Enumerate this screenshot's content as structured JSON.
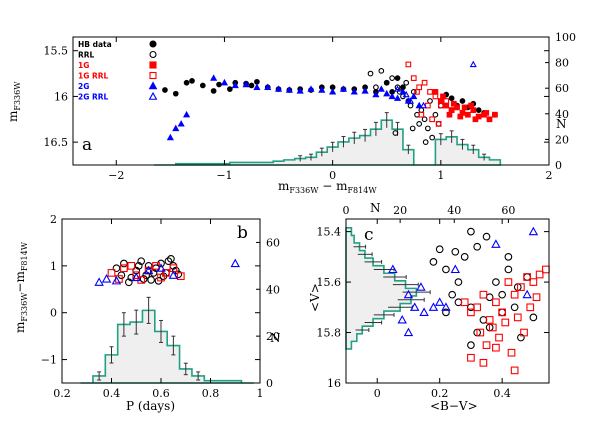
{
  "colors": {
    "hb": "#000000",
    "g1": "#ff0000",
    "g2": "#0000ff",
    "hist": "#22a085",
    "histfill": "#efefef"
  },
  "chart_data": [
    {
      "id": "a",
      "type": "scatter",
      "panel_label": "a",
      "xlabel": {
        "main": "m",
        "sub1": "F336W",
        "mid": " − m",
        "sub2": "F814W"
      },
      "ylabel": {
        "main": "m",
        "sub": "F336W"
      },
      "y2label": "N",
      "xlim": [
        -2.4,
        2
      ],
      "ylim": [
        16.75,
        15.35
      ],
      "y2lim": [
        0,
        100
      ],
      "xticks": [
        -2,
        -1,
        0,
        1,
        2
      ],
      "xtick_labels": [
        "−2",
        "−1",
        "0",
        "1",
        "2"
      ],
      "yticks": [
        15.5,
        16,
        16.5
      ],
      "ytick_labels": [
        "15.5",
        "16",
        "16.5"
      ],
      "y2ticks": [
        0,
        20,
        40,
        60,
        80,
        100
      ],
      "y2tick_labels": [
        "0",
        "20",
        "40",
        "60",
        "80",
        "100"
      ],
      "legend": [
        {
          "label": "HB data",
          "color": "#000000",
          "marker": "circle-filled"
        },
        {
          "label": "RRL",
          "color": "#000000",
          "marker": "circle-open"
        },
        {
          "label": "1G",
          "color": "#ff0000",
          "marker": "square-filled"
        },
        {
          "label": "1G RRL",
          "color": "#ff0000",
          "marker": "square-open"
        },
        {
          "label": "2G",
          "color": "#0000ff",
          "marker": "triangle-filled"
        },
        {
          "label": "2G RRL",
          "color": "#0000ff",
          "marker": "triangle-open"
        }
      ],
      "series": [
        {
          "name": "HB data",
          "marker": "circle-filled",
          "color": "#000000",
          "x": [
            -1.55,
            -1.45,
            -1.35,
            -1.3,
            -1.2,
            -1.1,
            -1.05,
            -0.95,
            -0.9,
            -0.8,
            -0.75,
            -0.7,
            -0.6,
            -0.5,
            -0.4,
            -0.3,
            -0.2,
            -0.1,
            0.0,
            0.1,
            0.2,
            0.3,
            0.4,
            0.5,
            0.55,
            0.6,
            0.65,
            1.0,
            1.05,
            1.1,
            1.15,
            1.2,
            1.25,
            1.3,
            1.35,
            1.4,
            1.5
          ],
          "y": [
            15.93,
            15.97,
            15.85,
            15.83,
            15.88,
            15.94,
            15.87,
            15.92,
            15.85,
            15.86,
            15.88,
            15.84,
            15.9,
            15.92,
            15.93,
            15.92,
            15.93,
            15.9,
            15.9,
            15.92,
            15.92,
            15.9,
            15.95,
            15.85,
            15.95,
            15.8,
            15.9,
            16.05,
            15.98,
            16.02,
            16.1,
            16.05,
            16.12,
            16.08,
            16.15,
            16.18,
            16.2
          ]
        },
        {
          "name": "RRL",
          "marker": "circle-open",
          "color": "#000000",
          "x": [
            0.35,
            0.45,
            0.5,
            0.55,
            0.6,
            0.62,
            0.65,
            0.68,
            0.7,
            0.72,
            0.75,
            0.78,
            0.8,
            0.82,
            0.85,
            0.88,
            0.9,
            0.92,
            0.95,
            0.98,
            1.0,
            0.4,
            0.58,
            0.74,
            0.86
          ],
          "y": [
            15.75,
            15.72,
            15.85,
            15.8,
            15.9,
            15.95,
            16.0,
            15.85,
            16.05,
            16.1,
            15.95,
            16.2,
            16.3,
            16.15,
            16.25,
            16.35,
            16.05,
            16.45,
            16.2,
            16.3,
            16.1,
            15.9,
            16.4,
            16.35,
            16.5
          ]
        },
        {
          "name": "1G",
          "marker": "square-filled",
          "color": "#ff0000",
          "x": [
            0.95,
            1.0,
            1.05,
            1.1,
            1.15,
            1.2,
            1.25,
            1.3,
            1.35,
            1.4,
            1.45,
            1.5,
            1.02,
            1.12,
            1.22,
            1.32,
            1.42,
            1.08,
            1.18,
            1.28
          ],
          "y": [
            15.95,
            16.05,
            16.1,
            16.15,
            16.12,
            16.18,
            16.2,
            16.15,
            16.22,
            16.2,
            16.25,
            16.2,
            16.0,
            16.08,
            16.12,
            16.25,
            16.18,
            16.2,
            16.22,
            16.1
          ]
        },
        {
          "name": "1G RRL",
          "marker": "square-open",
          "color": "#ff0000",
          "x": [
            0.7,
            0.75,
            0.8,
            0.85,
            0.9,
            0.95,
            1.0,
            1.05,
            1.1,
            0.82,
            0.92,
            0.98,
            0.88,
            0.78
          ],
          "y": [
            15.65,
            15.8,
            15.9,
            15.85,
            15.95,
            16.0,
            16.1,
            16.05,
            16.15,
            16.2,
            16.25,
            16.3,
            16.1,
            15.95
          ]
        },
        {
          "name": "2G",
          "marker": "triangle-filled",
          "color": "#0000ff",
          "x": [
            -1.5,
            -1.45,
            -1.4,
            -1.35,
            -1.1,
            -1.0,
            -0.9,
            -0.8,
            -0.7,
            -0.6,
            -0.5,
            -0.4,
            -0.3,
            -0.2,
            -0.1,
            0.0,
            0.1,
            0.2,
            0.3,
            0.4,
            0.45,
            0.5,
            0.55,
            0.6,
            0.65,
            0.7,
            0.75,
            0.8
          ],
          "y": [
            16.45,
            16.35,
            16.3,
            16.2,
            15.8,
            15.85,
            15.88,
            15.87,
            15.9,
            15.9,
            15.92,
            15.93,
            15.94,
            15.92,
            15.93,
            15.95,
            15.92,
            15.95,
            15.94,
            15.98,
            15.92,
            15.97,
            16.0,
            16.02,
            15.95,
            16.05,
            16.0,
            16.1
          ]
        },
        {
          "name": "2G RRL",
          "marker": "triangle-open",
          "color": "#0000ff",
          "x": [
            0.6,
            0.68,
            0.72,
            0.84,
            1.3
          ],
          "y": [
            15.92,
            15.98,
            16.05,
            16.1,
            15.65
          ]
        }
      ],
      "histogram": {
        "x": [
          -1.6,
          -1.5,
          -1.4,
          -1.3,
          -1.2,
          -1.1,
          -1.0,
          -0.9,
          -0.8,
          -0.7,
          -0.6,
          -0.5,
          -0.4,
          -0.3,
          -0.2,
          -0.1,
          0.0,
          0.1,
          0.2,
          0.3,
          0.4,
          0.5,
          0.6,
          0.7,
          0.8,
          0.9,
          1.0,
          1.1,
          1.2,
          1.3,
          1.4,
          1.5
        ],
        "counts": [
          0,
          0,
          1,
          1,
          1,
          1,
          1,
          2,
          2,
          2,
          2,
          3,
          4,
          5,
          6,
          10,
          14,
          18,
          21,
          23,
          28,
          35,
          28,
          12,
          0,
          0,
          20,
          22,
          16,
          12,
          6,
          4
        ]
      }
    },
    {
      "id": "b",
      "type": "scatter",
      "panel_label": "b",
      "xlabel": "P (days)",
      "ylabel": {
        "main": "m",
        "sub1": "F336W",
        "mid": "−m",
        "sub2": "F814W"
      },
      "y2label": "N",
      "xlim": [
        0.2,
        1.0
      ],
      "ylim": [
        -1.5,
        2.0
      ],
      "y2lim": [
        0,
        70
      ],
      "xticks": [
        0.2,
        0.4,
        0.6,
        0.8,
        1.0
      ],
      "xtick_labels": [
        "0.2",
        "0.4",
        "0.6",
        "0.8",
        "1"
      ],
      "yticks": [
        -1,
        0,
        1,
        2
      ],
      "ytick_labels": [
        "−1",
        "0",
        "1",
        "2"
      ],
      "y2ticks": [
        0,
        20,
        40,
        60
      ],
      "y2tick_labels": [
        "0",
        "20",
        "40",
        "60"
      ],
      "series": [
        {
          "name": "RRL",
          "marker": "circle-open",
          "color": "#000000",
          "x": [
            0.42,
            0.45,
            0.48,
            0.5,
            0.52,
            0.54,
            0.55,
            0.56,
            0.58,
            0.6,
            0.62,
            0.64,
            0.66,
            0.47,
            0.53,
            0.57,
            0.61,
            0.65,
            0.44,
            0.59,
            0.63,
            0.51,
            0.67
          ],
          "y": [
            0.95,
            1.05,
            0.75,
            0.9,
            1.1,
            0.8,
            1.0,
            0.7,
            0.95,
            1.05,
            0.85,
            1.15,
            0.9,
            0.65,
            0.72,
            0.85,
            0.78,
            1.0,
            0.8,
            0.68,
            1.1,
            1.0,
            0.82
          ]
        },
        {
          "name": "1G RRL",
          "marker": "square-open",
          "color": "#ff0000",
          "x": [
            0.4,
            0.45,
            0.5,
            0.55,
            0.6,
            0.65,
            0.48,
            0.58,
            0.62,
            0.52,
            0.68,
            0.43
          ],
          "y": [
            0.85,
            0.95,
            0.8,
            0.9,
            0.75,
            0.95,
            1.0,
            1.0,
            0.85,
            0.7,
            0.78,
            0.72
          ]
        },
        {
          "name": "2G RRL",
          "marker": "triangle-open",
          "color": "#0000ff",
          "x": [
            0.35,
            0.38,
            0.42,
            0.55,
            0.6,
            0.65,
            0.9,
            0.5
          ],
          "y": [
            0.65,
            0.72,
            0.68,
            0.9,
            0.95,
            0.8,
            1.05,
            0.75
          ]
        }
      ],
      "histogram": {
        "x": [
          0.3,
          0.35,
          0.4,
          0.45,
          0.5,
          0.55,
          0.6,
          0.65,
          0.7,
          0.75,
          0.8,
          0.85,
          0.9,
          0.95
        ],
        "counts": [
          0,
          3,
          12,
          25,
          26,
          31,
          22,
          16,
          6,
          3,
          1,
          1,
          1,
          0
        ]
      }
    },
    {
      "id": "c",
      "type": "scatter",
      "panel_label": "c",
      "xlabel": "<B−V>",
      "ylabel": "<V>",
      "x2label": "N",
      "xlim": [
        -0.1,
        0.55
      ],
      "ylim": [
        16.0,
        15.35
      ],
      "x2lim": [
        0,
        75
      ],
      "xticks": [
        0,
        0.2,
        0.4
      ],
      "xtick_labels": [
        "0",
        "0.2",
        "0.4"
      ],
      "yticks": [
        15.4,
        15.6,
        15.8,
        16
      ],
      "ytick_labels": [
        "15.4",
        "15.6",
        "15.8",
        "16"
      ],
      "x2ticks": [
        0,
        20,
        40,
        60
      ],
      "x2tick_labels": [
        "0",
        "20",
        "40",
        "60"
      ],
      "series": [
        {
          "name": "RRL",
          "marker": "circle-open",
          "color": "#000000",
          "x": [
            0.18,
            0.2,
            0.22,
            0.25,
            0.28,
            0.3,
            0.32,
            0.35,
            0.38,
            0.4,
            0.42,
            0.45,
            0.48,
            0.22,
            0.26,
            0.3,
            0.34,
            0.36,
            0.4,
            0.44,
            0.3,
            0.32,
            0.36,
            0.46,
            0.5,
            0.26,
            0.24,
            0.42
          ],
          "y": [
            15.52,
            15.47,
            15.55,
            15.48,
            15.5,
            15.4,
            15.46,
            15.42,
            15.6,
            15.65,
            15.55,
            15.62,
            15.58,
            15.72,
            15.68,
            15.7,
            15.75,
            15.66,
            15.72,
            15.7,
            15.85,
            15.8,
            15.78,
            15.82,
            15.74,
            15.6,
            15.65,
            15.5
          ]
        },
        {
          "name": "1G RRL",
          "marker": "square-open",
          "color": "#ff0000",
          "x": [
            0.28,
            0.3,
            0.32,
            0.34,
            0.36,
            0.38,
            0.4,
            0.42,
            0.44,
            0.46,
            0.48,
            0.5,
            0.52,
            0.54,
            0.33,
            0.37,
            0.41,
            0.45,
            0.49,
            0.35,
            0.39,
            0.43,
            0.47,
            0.51,
            0.3,
            0.34,
            0.38,
            0.44
          ],
          "y": [
            15.68,
            15.72,
            15.7,
            15.65,
            15.75,
            15.68,
            15.72,
            15.6,
            15.65,
            15.62,
            15.58,
            15.6,
            15.57,
            15.55,
            15.8,
            15.78,
            15.76,
            15.74,
            15.7,
            15.85,
            15.82,
            15.88,
            15.8,
            15.66,
            15.9,
            15.92,
            15.86,
            15.95
          ]
        },
        {
          "name": "2G RRL",
          "marker": "triangle-open",
          "color": "#0000ff",
          "x": [
            0.05,
            0.08,
            0.1,
            0.12,
            0.15,
            0.18,
            0.2,
            0.22,
            0.25,
            0.38,
            0.48,
            0.5,
            0.1,
            0.14
          ],
          "y": [
            15.55,
            15.75,
            15.65,
            15.7,
            15.72,
            15.7,
            15.68,
            15.7,
            15.55,
            15.45,
            15.65,
            15.4,
            15.8,
            15.62
          ]
        }
      ],
      "histogram": {
        "y": [
          15.4,
          15.43,
          15.46,
          15.49,
          15.52,
          15.55,
          15.58,
          15.61,
          15.64,
          15.67,
          15.7,
          15.73,
          15.76,
          15.79,
          15.82,
          15.85
        ],
        "counts": [
          2,
          3,
          5,
          7,
          10,
          14,
          18,
          22,
          26,
          24,
          20,
          14,
          10,
          6,
          4,
          2
        ]
      }
    }
  ]
}
